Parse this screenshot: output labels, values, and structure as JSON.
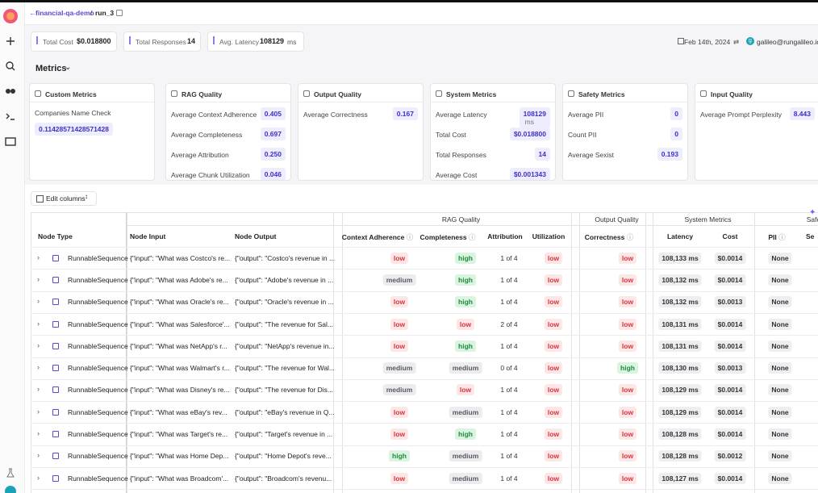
{
  "header": {
    "project": "financial-qa-demo",
    "separator": "/",
    "run": "run_3",
    "date": "Feb 14th, 2024",
    "avatar": "g",
    "user": "galileo@rungalileo.io"
  },
  "stats": [
    {
      "label": "Total Cost",
      "value": "$0.018800"
    },
    {
      "label": "Total Responses",
      "value": "14"
    },
    {
      "label": "Avg. Latency",
      "value": "108129",
      "unit": "ms"
    }
  ],
  "metrics_title": "Metrics",
  "cards": [
    {
      "title": "Custom Metrics",
      "items": [
        {
          "label": "Companies Name Check",
          "value": "0.11428571428571428"
        }
      ]
    },
    {
      "title": "RAG Quality",
      "items": [
        {
          "label": "Average Context Adherence",
          "value": "0.405"
        },
        {
          "label": "Average Completeness",
          "value": "0.697"
        },
        {
          "label": "Average Attribution",
          "value": "0.250"
        },
        {
          "label": "Average Chunk Utilization",
          "value": "0.046"
        }
      ]
    },
    {
      "title": "Output Quality",
      "items": [
        {
          "label": "Average Correctness",
          "value": "0.167"
        }
      ]
    },
    {
      "title": "System Metrics",
      "items": [
        {
          "label": "Average Latency",
          "value": "108129",
          "unit": "ms"
        },
        {
          "label": "Total Cost",
          "value": "$0.018800"
        },
        {
          "label": "Total Responses",
          "value": "14"
        },
        {
          "label": "Average Cost",
          "value": "$0.001343"
        }
      ]
    },
    {
      "title": "Safety Metrics",
      "items": [
        {
          "label": "Average PII",
          "value": "0"
        },
        {
          "label": "Count PII",
          "value": "0"
        },
        {
          "label": "Average Sexist",
          "value": "0.193"
        }
      ]
    },
    {
      "title": "Input Quality",
      "items": [
        {
          "label": "Average Prompt Perplexity",
          "value": "8.443"
        }
      ]
    }
  ],
  "edit_columns": "Edit columns",
  "table": {
    "groups": [
      "RAG Quality",
      "Output Quality",
      "System Metrics",
      "Safe"
    ],
    "columns": [
      "Node Type",
      "Node Input",
      "Node Output",
      "Context Adherence",
      "Completeness",
      "Attribution",
      "Utilization",
      "Correctness",
      "Latency",
      "Cost",
      "PII",
      "Se"
    ],
    "rows": [
      [
        "RunnableSequence",
        "{\"input\": \"What was Costco's re...",
        "{\"output\": \"Costco's revenue in ...",
        "low",
        "high",
        "1 of 4",
        "low",
        "low",
        "108,133 ms",
        "$0.0014",
        "None"
      ],
      [
        "RunnableSequence",
        "{\"input\": \"What was Adobe's re...",
        "{\"output\": \"Adobe's revenue in ...",
        "medium",
        "high",
        "1 of 4",
        "low",
        "low",
        "108,132 ms",
        "$0.0014",
        "None"
      ],
      [
        "RunnableSequence",
        "{\"input\": \"What was Oracle's re...",
        "{\"output\": \"Oracle's revenue in ...",
        "low",
        "high",
        "1 of 4",
        "low",
        "low",
        "108,132 ms",
        "$0.0013",
        "None"
      ],
      [
        "RunnableSequence",
        "{\"input\": \"What was Salesforce'...",
        "{\"output\": \"The revenue for Sal...",
        "low",
        "low",
        "2 of 4",
        "low",
        "low",
        "108,131 ms",
        "$0.0014",
        "None"
      ],
      [
        "RunnableSequence",
        "{\"input\": \"What was NetApp's r...",
        "{\"output\": \"NetApp's revenue in...",
        "low",
        "high",
        "1 of 4",
        "low",
        "low",
        "108,131 ms",
        "$0.0014",
        "None"
      ],
      [
        "RunnableSequence",
        "{\"input\": \"What was Walmart's r...",
        "{\"output\": \"The revenue for Wal...",
        "medium",
        "medium",
        "0 of 4",
        "low",
        "high",
        "108,130 ms",
        "$0.0013",
        "None"
      ],
      [
        "RunnableSequence",
        "{\"input\": \"What was Disney's re...",
        "{\"output\": \"The revenue for Dis...",
        "medium",
        "low",
        "1 of 4",
        "low",
        "low",
        "108,129 ms",
        "$0.0014",
        "None"
      ],
      [
        "RunnableSequence",
        "{\"input\": \"What was eBay's rev...",
        "{\"output\": \"eBay's revenue in Q...",
        "low",
        "medium",
        "1 of 4",
        "low",
        "low",
        "108,129 ms",
        "$0.0014",
        "None"
      ],
      [
        "RunnableSequence",
        "{\"input\": \"What was Target's re...",
        "{\"output\": \"Target's revenue in ...",
        "low",
        "high",
        "1 of 4",
        "low",
        "low",
        "108,128 ms",
        "$0.0014",
        "None"
      ],
      [
        "RunnableSequence",
        "{\"input\": \"What was Home Dep...",
        "{\"output\": \"Home Depot's reve...",
        "high",
        "medium",
        "1 of 4",
        "low",
        "low",
        "108,128 ms",
        "$0.0012",
        "None"
      ],
      [
        "RunnableSequence",
        "{\"input\": \"What was Broadcom'...",
        "{\"output\": \"Broadcom's revenu...",
        "low",
        "medium",
        "1 of 4",
        "low",
        "low",
        "108,127 ms",
        "$0.0014",
        "None"
      ]
    ]
  },
  "badge_colors": {
    "low": {
      "bg": "#fde6e6",
      "fg": "#d8343c"
    },
    "medium": {
      "bg": "#ececee",
      "fg": "#555a63"
    },
    "high": {
      "bg": "#daf4e1",
      "fg": "#1e8a3c"
    }
  }
}
